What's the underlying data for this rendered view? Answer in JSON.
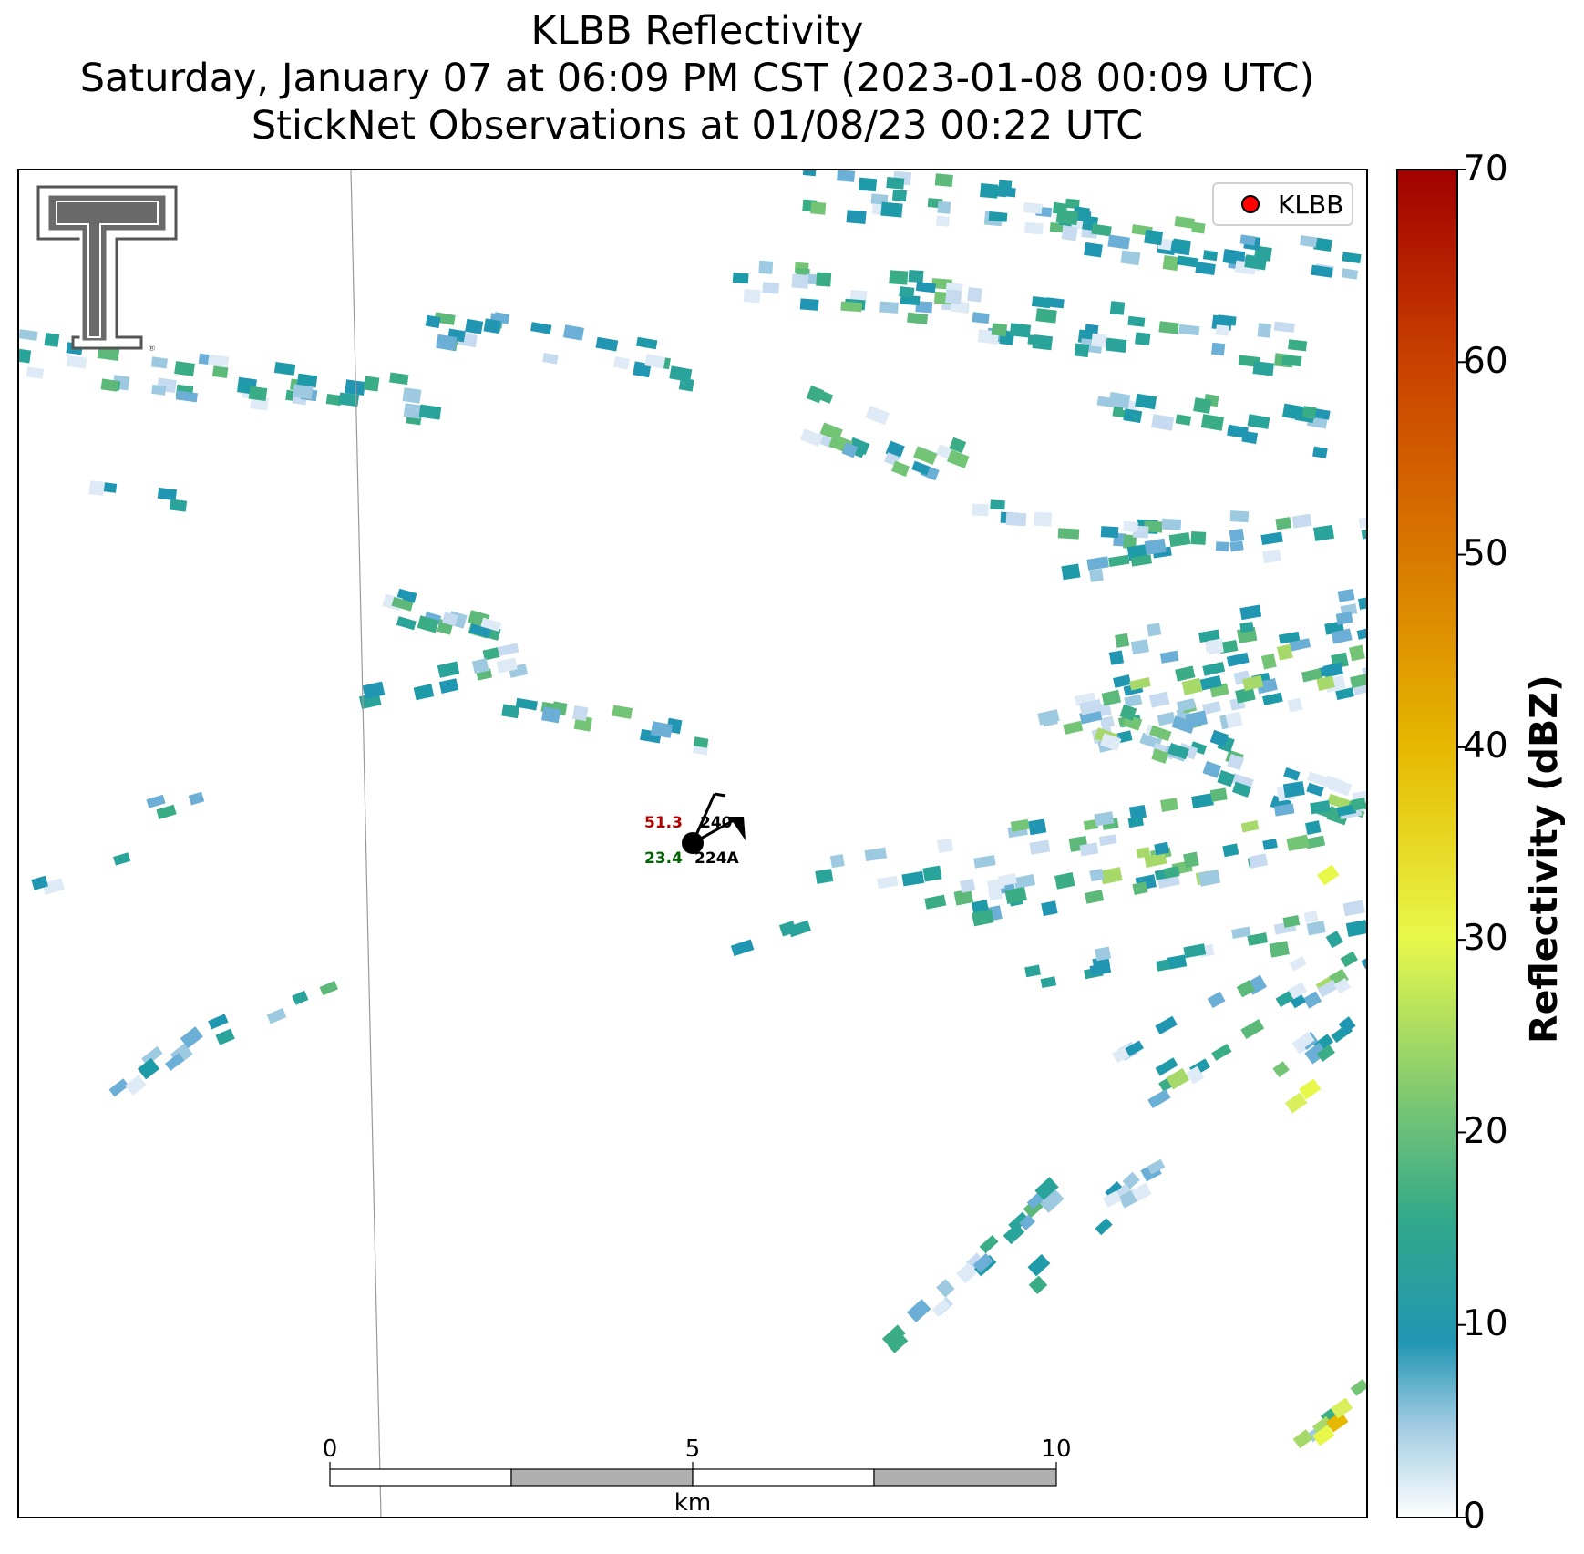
{
  "title": {
    "line1": "KLBB Reflectivity",
    "line2": "Saturday, January 07 at 06:09 PM CST (2023-01-08 00:09 UTC)",
    "line3": "StickNet Observations at 01/08/23 00:22 UTC"
  },
  "legend": {
    "label": "KLBB",
    "marker_color": "#ff0000"
  },
  "colorbar": {
    "label": "Reflectivity (dBZ)",
    "ticks": [
      "0",
      "10",
      "20",
      "30",
      "40",
      "50",
      "60",
      "70"
    ],
    "range": [
      0,
      70
    ],
    "colors": [
      "#ffffff",
      "#9ecae1",
      "#2196b3",
      "#31a88a",
      "#74c476",
      "#e8f84a",
      "#e6b800",
      "#d97a00",
      "#c94000",
      "#a00000"
    ]
  },
  "scale_bar": {
    "ticks": [
      "0",
      "5",
      "10"
    ],
    "unit": "km"
  },
  "station": {
    "id": "224A",
    "temperature": "51.3",
    "dewpoint": "23.4",
    "pressure_partial": "240"
  },
  "logo": {
    "name": "Texas Tech Double T"
  }
}
